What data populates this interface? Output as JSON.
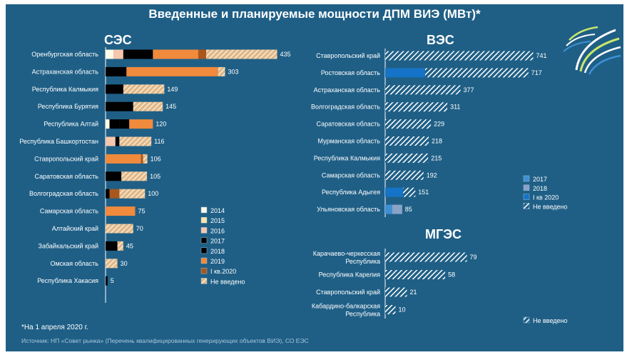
{
  "title": "Введенные и планируемые мощности ДПМ ВИЭ (МВт)*",
  "footnote": "*На 1 апреля 2020 г.",
  "source": "Источник: НП «Совет рынка» (Перечень квалифицированных генерирующих объектов ВИЭ), СО ЕЭС",
  "colors": {
    "background": "#1f5f86",
    "2014": "#fdfbe8",
    "2015": "#fae7a8",
    "2016": "#f6c7ae",
    "2017_solar": "#f7bd20",
    "2018_solar": "#f59c48",
    "2019": "#f08a3c",
    "I кв.2020": "#a9571c",
    "Не введено": "#f0e2c2",
    "2017_wind": "#3d90d4",
    "2018_wind": "#8ba2c7",
    "I кв 2020_wind": "#1574c7",
    "Не введено_wind": "#ffffff"
  },
  "chart_data": [
    {
      "type": "bar",
      "orientation": "horizontal",
      "stacked": true,
      "title": "СЭС",
      "legend_placement": "bottom-right",
      "legend": [
        "2014",
        "2015",
        "2016",
        "2017",
        "2018",
        "2019",
        "I кв.2020",
        "Не введено"
      ],
      "series_keys": [
        "2014",
        "2015",
        "2016",
        "2017",
        "2018",
        "2019",
        "I кв.2020",
        "Не введено"
      ],
      "rows": [
        {
          "label": "Оренбургская область",
          "total": 435,
          "parts": [
            20,
            0,
            25,
            10,
            65,
            115,
            20,
            180
          ]
        },
        {
          "label": "Астраханская область",
          "total": 303,
          "parts": [
            0,
            0,
            0,
            8,
            45,
            232,
            0,
            18
          ]
        },
        {
          "label": "Республика Калмыкия",
          "total": 149,
          "parts": [
            0,
            0,
            0,
            0,
            45,
            0,
            0,
            104
          ]
        },
        {
          "label": "Республика Бурятия",
          "total": 145,
          "parts": [
            0,
            0,
            0,
            0,
            70,
            0,
            0,
            75
          ]
        },
        {
          "label": "Республика Алтай",
          "total": 120,
          "parts": [
            10,
            0,
            0,
            25,
            25,
            60,
            0,
            0
          ]
        },
        {
          "label": "Республика Башкортостан",
          "total": 116,
          "parts": [
            0,
            0,
            25,
            10,
            0,
            0,
            0,
            81
          ]
        },
        {
          "label": "Ставропольский край",
          "total": 106,
          "parts": [
            0,
            0,
            0,
            0,
            0,
            90,
            5,
            11
          ]
        },
        {
          "label": "Саратовская область",
          "total": 105,
          "parts": [
            0,
            0,
            0,
            0,
            40,
            0,
            0,
            65
          ]
        },
        {
          "label": "Волгоградская область",
          "total": 100,
          "parts": [
            0,
            0,
            0,
            10,
            0,
            0,
            25,
            65
          ]
        },
        {
          "label": "Самарская область",
          "total": 75,
          "parts": [
            0,
            0,
            0,
            0,
            0,
            75,
            0,
            0
          ]
        },
        {
          "label": "Алтайский край",
          "total": 70,
          "parts": [
            0,
            0,
            0,
            0,
            0,
            0,
            0,
            70
          ]
        },
        {
          "label": "Забайкальский край",
          "total": 45,
          "parts": [
            0,
            0,
            0,
            0,
            30,
            0,
            0,
            15
          ]
        },
        {
          "label": "Омская область",
          "total": 30,
          "parts": [
            0,
            0,
            0,
            0,
            0,
            0,
            0,
            30
          ]
        },
        {
          "label": "Республика Хакасия",
          "total": 5,
          "parts": [
            0,
            0,
            0,
            5,
            0,
            0,
            0,
            0
          ]
        }
      ]
    },
    {
      "type": "bar",
      "orientation": "horizontal",
      "stacked": true,
      "title": "ВЭС",
      "legend_placement": "right",
      "legend": [
        "2017",
        "2018",
        "I кв 2020",
        "Не введено"
      ],
      "series_keys": [
        "2017_wind",
        "2018_wind",
        "I кв 2020_wind",
        "Не введено_wind"
      ],
      "rows": [
        {
          "label": "Ставропольский край",
          "total": 741,
          "parts": [
            0,
            0,
            0,
            741
          ]
        },
        {
          "label": "Ростовская область",
          "total": 717,
          "parts": [
            0,
            0,
            200,
            517
          ]
        },
        {
          "label": "Астраханская область",
          "total": 377,
          "parts": [
            0,
            0,
            0,
            377
          ]
        },
        {
          "label": "Волгоградская область",
          "total": 311,
          "parts": [
            0,
            0,
            0,
            311
          ]
        },
        {
          "label": "Саратовская область",
          "total": 229,
          "parts": [
            0,
            0,
            0,
            229
          ]
        },
        {
          "label": "Мурманская область",
          "total": 218,
          "parts": [
            0,
            0,
            0,
            218
          ]
        },
        {
          "label": "Республика Калмыкия",
          "total": 215,
          "parts": [
            0,
            0,
            0,
            215
          ]
        },
        {
          "label": "Самарская область",
          "total": 192,
          "parts": [
            0,
            0,
            0,
            192
          ]
        },
        {
          "label": "Республика Адыгея",
          "total": 151,
          "parts": [
            0,
            0,
            90,
            61
          ]
        },
        {
          "label": "Ульяновская область",
          "total": 85,
          "parts": [
            35,
            50,
            0,
            0
          ]
        }
      ]
    },
    {
      "type": "bar",
      "orientation": "horizontal",
      "stacked": true,
      "title": "МГЭС",
      "legend_placement": "bottom-right",
      "legend": [
        "Не введено"
      ],
      "series_keys": [
        "Не введено_wind"
      ],
      "rows": [
        {
          "label": [
            "Карачаево-черкесская",
            "Республика"
          ],
          "total": 79,
          "parts": [
            79
          ]
        },
        {
          "label": [
            "Республика Карелия"
          ],
          "total": 58,
          "parts": [
            58
          ]
        },
        {
          "label": [
            "Ставропольский край"
          ],
          "total": 21,
          "parts": [
            21
          ]
        },
        {
          "label": [
            "Кабардино-балкарская",
            "Республика"
          ],
          "total": 10,
          "parts": [
            10
          ]
        }
      ]
    }
  ]
}
